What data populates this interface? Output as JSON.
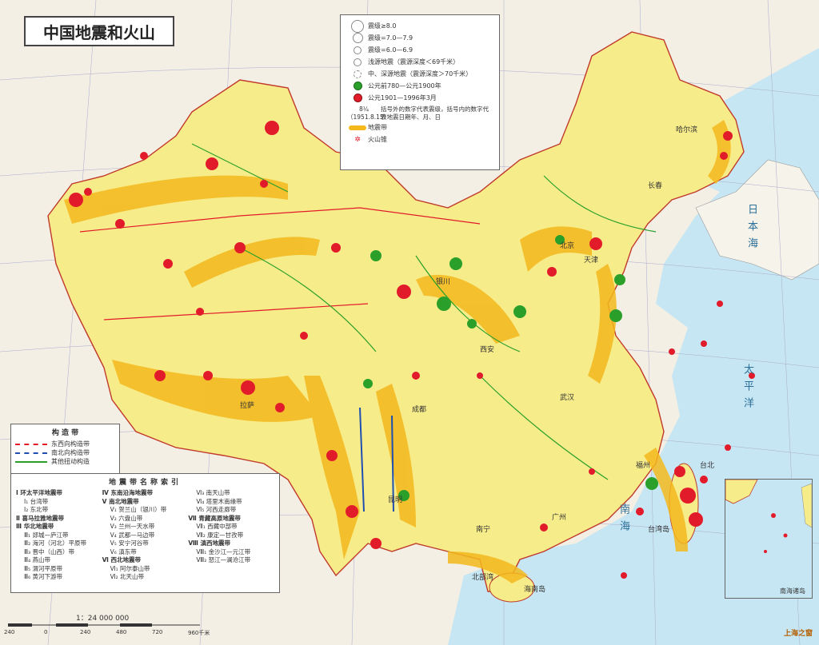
{
  "title": "中国地震和火山",
  "legend": {
    "magnitude_items": [
      {
        "label": "震级≥8.0",
        "size": 14
      },
      {
        "label": "震级=7.0—7.9",
        "size": 11
      },
      {
        "label": "震级=6.0—6.9",
        "size": 8
      },
      {
        "label": "浅源地震（震源深度＜69千米）",
        "size": 8
      },
      {
        "label": "中、深源地震（震源深度＞70千米）",
        "size": 8
      }
    ],
    "era_items": [
      {
        "label": "公元前780—公元1900年",
        "color": "#2aa02a"
      },
      {
        "label": "公元1901—1996年3月",
        "color": "#e21b2b"
      }
    ],
    "note_symbol": "8¼（1951.8.15）",
    "note_text": "括号外的数字代表震级，括号内的数字代表地震日期年、月、日",
    "band_label": "地震带",
    "volcano_label": "火山锥"
  },
  "structure_legend": {
    "heading": "构 造 带",
    "items": [
      {
        "label": "东西向构造带",
        "color": "#e21b2b"
      },
      {
        "label": "南北向构造带",
        "color": "#1f4fb0"
      },
      {
        "label": "其他扭动构造",
        "color": "#2aa02a"
      }
    ]
  },
  "index": {
    "heading": "地震带名称索引",
    "columns": [
      [
        {
          "text": "Ⅰ 环太平洋地震带",
          "main": true
        },
        {
          "text": "Ⅰ₁  台湾带",
          "main": false
        },
        {
          "text": "Ⅰ₂  东北带",
          "main": false
        },
        {
          "text": "Ⅱ 喜马拉雅地震带",
          "main": true
        },
        {
          "text": "Ⅲ 华北地震带",
          "main": true
        },
        {
          "text": "Ⅲ₁  郯城—庐江带",
          "main": false
        },
        {
          "text": "Ⅲ₂  海河（河北）平原带",
          "main": false
        },
        {
          "text": "Ⅲ₃  晋中（山西）带",
          "main": false
        },
        {
          "text": "Ⅲ₄  燕山带",
          "main": false
        },
        {
          "text": "Ⅲ₅  渭河平原带",
          "main": false
        },
        {
          "text": "Ⅲ₆  黄河下游带",
          "main": false
        }
      ],
      [
        {
          "text": "Ⅳ 东南沿海地震带",
          "main": true
        },
        {
          "text": "Ⅴ 南北地震带",
          "main": true
        },
        {
          "text": "Ⅴ₁  贺兰山（银川）带",
          "main": false
        },
        {
          "text": "Ⅴ₂  六盘山带",
          "main": false
        },
        {
          "text": "Ⅴ₃  兰州—天水带",
          "main": false
        },
        {
          "text": "Ⅴ₄  武都—马边带",
          "main": false
        },
        {
          "text": "Ⅴ₅  安宁河谷带",
          "main": false
        },
        {
          "text": "Ⅴ₆  滇东带",
          "main": false
        },
        {
          "text": "Ⅵ 西北地震带",
          "main": true
        },
        {
          "text": "Ⅵ₁  阿尔泰山带",
          "main": false
        },
        {
          "text": "Ⅵ₂  北天山带",
          "main": false
        }
      ],
      [
        {
          "text": "Ⅵ₃  南天山带",
          "main": false
        },
        {
          "text": "Ⅵ₄  塔里木南缘带",
          "main": false
        },
        {
          "text": "Ⅵ₅  河西走廊带",
          "main": false
        },
        {
          "text": "Ⅶ 青藏高原地震带",
          "main": true
        },
        {
          "text": "Ⅶ₁  西藏中部带",
          "main": false
        },
        {
          "text": "Ⅶ₂  康定—甘孜带",
          "main": false
        },
        {
          "text": "Ⅷ 滇西地震带",
          "main": true
        },
        {
          "text": "Ⅷ₁  金沙江—元江带",
          "main": false
        },
        {
          "text": "Ⅷ₂  怒江—澜沧江带",
          "main": false
        }
      ]
    ]
  },
  "scale": {
    "ratio": "1：24 000 000",
    "ticks": [
      "240",
      "0",
      "240",
      "480",
      "720",
      "960千米"
    ]
  },
  "labels": {
    "inset": "南海诸岛",
    "harbin": "哈尔滨",
    "changchun": "长春",
    "tianjin": "天津",
    "wuhan": "武汉",
    "fuzhou": "福州",
    "taibei": "台北",
    "guangzhou": "广州",
    "nanning": "南宁",
    "hainan": "海南岛",
    "taiwan": "台湾岛",
    "beibuwan": "北部湾",
    "yinchuan": "银川",
    "lasa": "拉萨",
    "kunming": "昆明",
    "chengdu": "成都",
    "xian": "西安",
    "beijing": "北京"
  },
  "seas": {
    "japan_sea": "日本海",
    "pacific": "太平洋",
    "south_china_sea": "南海"
  },
  "logo": "上海之窗"
}
